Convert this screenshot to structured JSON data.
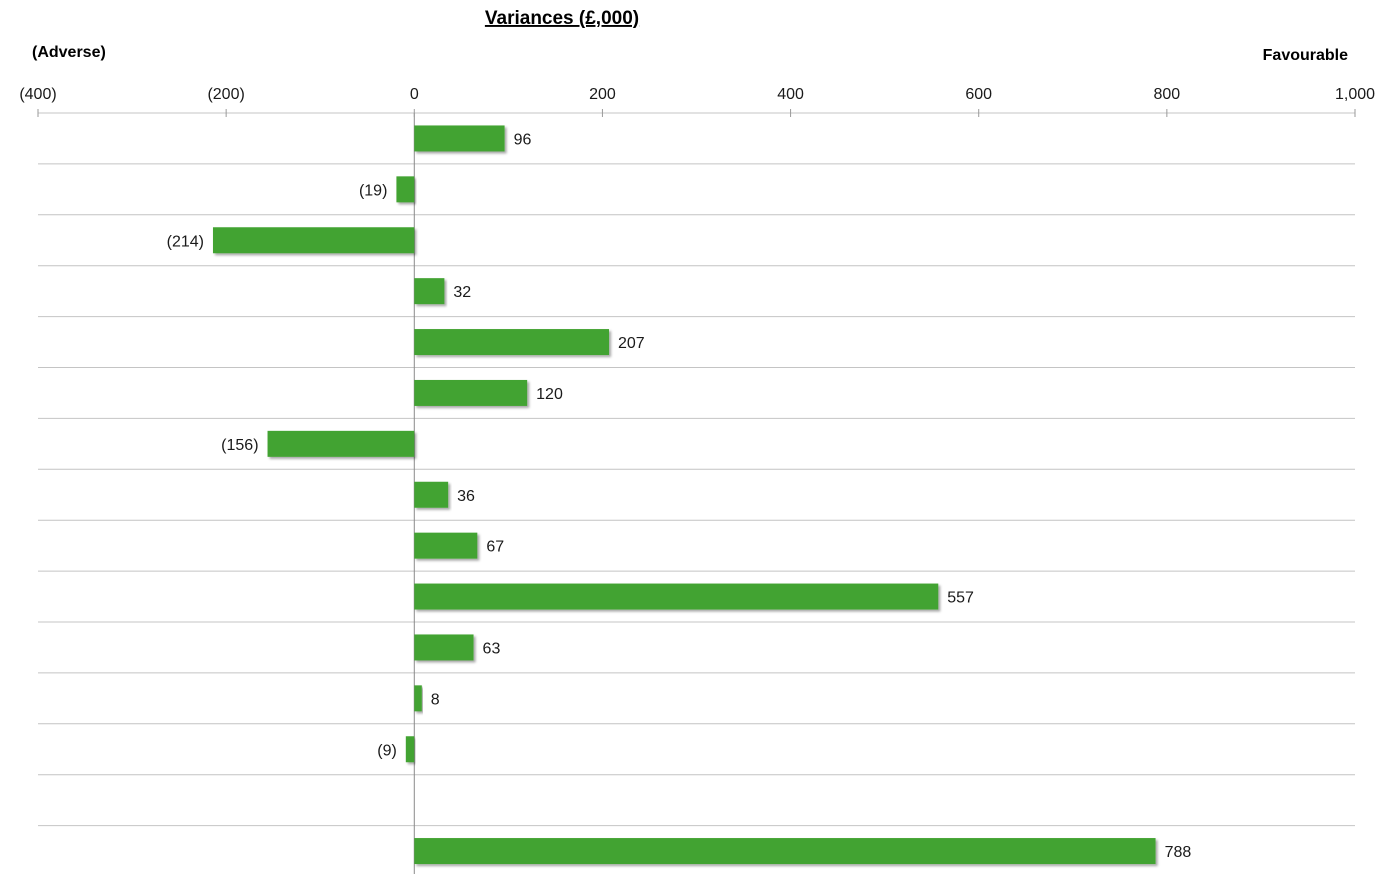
{
  "chart_data": {
    "type": "bar",
    "orientation": "horizontal",
    "title": "Variances (£,000)",
    "left_label": "(Adverse)",
    "right_label": "Favourable",
    "xlim": [
      -400,
      1000
    ],
    "x_ticks": [
      -400,
      -200,
      0,
      200,
      400,
      600,
      800,
      1000
    ],
    "x_tick_labels": [
      "(400)",
      "(200)",
      "0",
      "200",
      "400",
      "600",
      "800",
      "1,000"
    ],
    "values": [
      96,
      -19,
      -214,
      32,
      207,
      120,
      -156,
      36,
      67,
      557,
      63,
      8,
      -9,
      null,
      788
    ],
    "data_labels": [
      "96",
      "(19)",
      "(214)",
      "32",
      "207",
      "120",
      "(156)",
      "36",
      "67",
      "557",
      "63",
      "8",
      "(9)",
      "",
      "788"
    ],
    "grid": true,
    "bar_color": "#43a332"
  }
}
